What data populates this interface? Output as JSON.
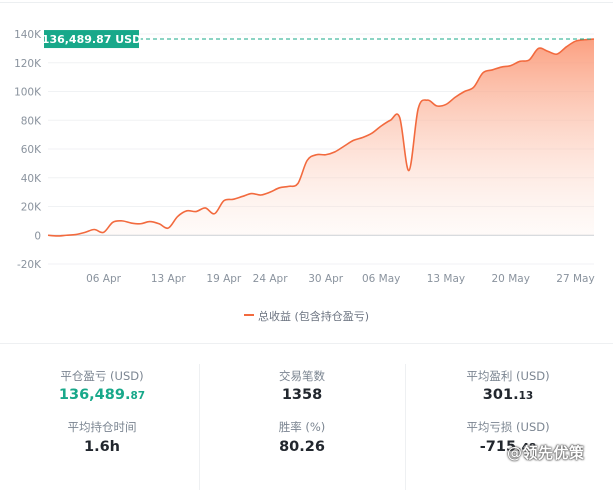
{
  "chart_data": {
    "type": "area",
    "y_ticks": [
      "140K",
      "120K",
      "100K",
      "80K",
      "60K",
      "40K",
      "20K",
      "0",
      "-20K"
    ],
    "ylim": [
      -20000,
      140000
    ],
    "x_ticks": [
      "06 Apr",
      "13 Apr",
      "19 Apr",
      "24 Apr",
      "30 Apr",
      "06 May",
      "13 May",
      "20 May",
      "27 May"
    ],
    "grid": true,
    "color": "#f26a3e",
    "fill_color": "#fb9b7a",
    "final_value_label": "136,489.87 USD",
    "final_value_color": "#18a88a",
    "series": [
      {
        "name": "总收益 (包含持仓盈亏)",
        "x": [
          "2023-03-31",
          "2023-04-01",
          "2023-04-02",
          "2023-04-03",
          "2023-04-04",
          "2023-04-05",
          "2023-04-06",
          "2023-04-07",
          "2023-04-08",
          "2023-04-09",
          "2023-04-10",
          "2023-04-11",
          "2023-04-12",
          "2023-04-13",
          "2023-04-14",
          "2023-04-15",
          "2023-04-16",
          "2023-04-17",
          "2023-04-18",
          "2023-04-19",
          "2023-04-20",
          "2023-04-21",
          "2023-04-22",
          "2023-04-23",
          "2023-04-24",
          "2023-04-25",
          "2023-04-26",
          "2023-04-27",
          "2023-04-28",
          "2023-04-29",
          "2023-04-30",
          "2023-05-01",
          "2023-05-02",
          "2023-05-03",
          "2023-05-04",
          "2023-05-05",
          "2023-05-06",
          "2023-05-07",
          "2023-05-08",
          "2023-05-09",
          "2023-05-10",
          "2023-05-11",
          "2023-05-12",
          "2023-05-13",
          "2023-05-14",
          "2023-05-15",
          "2023-05-16",
          "2023-05-17",
          "2023-05-18",
          "2023-05-19",
          "2023-05-20",
          "2023-05-21",
          "2023-05-22",
          "2023-05-23",
          "2023-05-24",
          "2023-05-25",
          "2023-05-26",
          "2023-05-27",
          "2023-05-28",
          "2023-05-29"
        ],
        "y": [
          0,
          -500,
          0,
          500,
          2000,
          4000,
          2000,
          9000,
          10000,
          8500,
          8000,
          9500,
          8000,
          5000,
          13000,
          17000,
          16500,
          19000,
          15000,
          24000,
          25000,
          27000,
          29000,
          28000,
          30000,
          33000,
          34000,
          36000,
          52000,
          56000,
          56000,
          58000,
          62000,
          66000,
          68000,
          71000,
          76000,
          80000,
          82000,
          45000,
          88000,
          94000,
          90000,
          91000,
          96000,
          100000,
          103000,
          113000,
          115000,
          117000,
          118000,
          121000,
          122000,
          130000,
          128000,
          126000,
          131000,
          135000,
          136000,
          136490
        ]
      }
    ]
  },
  "legend": {
    "label": "总收益 (包含持仓盈亏)"
  },
  "stats": {
    "closed_pnl": {
      "label": "平仓盈亏 (USD)",
      "value_main": "136,489.",
      "value_small": "87"
    },
    "trade_count": {
      "label": "交易笔数",
      "value": "1358"
    },
    "avg_profit": {
      "label": "平均盈利 (USD)",
      "value_main": "301.",
      "value_small": "13"
    },
    "avg_hold_time": {
      "label": "平均持仓时间",
      "value": "1.6h"
    },
    "win_rate": {
      "label": "胜率 (%)",
      "value": "80.26"
    },
    "avg_loss": {
      "label": "平均亏损 (USD)",
      "value_main": "-715.",
      "value_small": "48"
    }
  },
  "watermark": {
    "icon": "weibo-icon",
    "text": "领先优策"
  }
}
